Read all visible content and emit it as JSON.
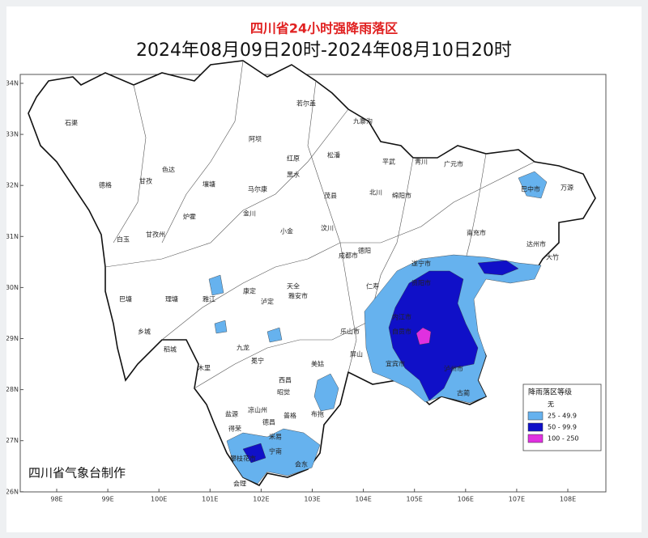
{
  "header": {
    "title": "四川省24小时强降雨落区",
    "subtitle": "2024年08月09日20时-2024年08月10日20时"
  },
  "map": {
    "lat_ticks": [
      {
        "value": 34,
        "label": "34N"
      },
      {
        "value": 33,
        "label": "33N"
      },
      {
        "value": 32,
        "label": "32N"
      },
      {
        "value": 31,
        "label": "31N"
      },
      {
        "value": 30,
        "label": "30N"
      },
      {
        "value": 29,
        "label": "29N"
      },
      {
        "value": 28,
        "label": "28N"
      },
      {
        "value": 27,
        "label": "27N"
      },
      {
        "value": 26,
        "label": "26N"
      }
    ],
    "lon_ticks": [
      {
        "value": 98,
        "label": "98E"
      },
      {
        "value": 99,
        "label": "99E"
      },
      {
        "value": 100,
        "label": "100E"
      },
      {
        "value": 101,
        "label": "101E"
      },
      {
        "value": 102,
        "label": "102E"
      },
      {
        "value": 103,
        "label": "103E"
      },
      {
        "value": 104,
        "label": "104E"
      },
      {
        "value": 105,
        "label": "105E"
      },
      {
        "value": 106,
        "label": "106E"
      },
      {
        "value": 107,
        "label": "107E"
      },
      {
        "value": 108,
        "label": "108E"
      }
    ],
    "places": [
      "石渠",
      "若尔盖",
      "九寨沟",
      "阿坝",
      "红原",
      "松潘",
      "平武",
      "青川",
      "德格",
      "甘孜",
      "色达",
      "壤塘",
      "马尔康",
      "黑水",
      "茂县",
      "北川",
      "绵阳市",
      "广元市",
      "巴中市",
      "万源",
      "白玉",
      "甘孜州",
      "炉霍",
      "金川",
      "小金",
      "汶川",
      "德阳",
      "南充市",
      "达州市",
      "大竹",
      "巴塘",
      "理塘",
      "雅江",
      "康定",
      "泸定",
      "天全",
      "雅安市",
      "成都市",
      "资阳市",
      "遂宁市",
      "乐山市",
      "仁寿",
      "内江市",
      "自贡市",
      "泸州市",
      "宜宾市",
      "古蔺",
      "乡城",
      "稻城",
      "九龙",
      "木里",
      "冕宁",
      "西昌",
      "美姑",
      "屏山",
      "昭觉",
      "凉山州",
      "盐源",
      "普格",
      "布拖",
      "会东",
      "宁南",
      "攀枝花市",
      "米易",
      "会理",
      "得荣",
      "德昌"
    ]
  },
  "legend": {
    "title": "降雨落区等级",
    "items": [
      {
        "label": "无",
        "color": "#ffffff"
      },
      {
        "label": "25 - 49.9",
        "color": "#66b2ee"
      },
      {
        "label": "50 - 99.9",
        "color": "#1010c8"
      },
      {
        "label": "100 - 250",
        "color": "#e030e0"
      }
    ]
  },
  "credit": "四川省气象台制作"
}
